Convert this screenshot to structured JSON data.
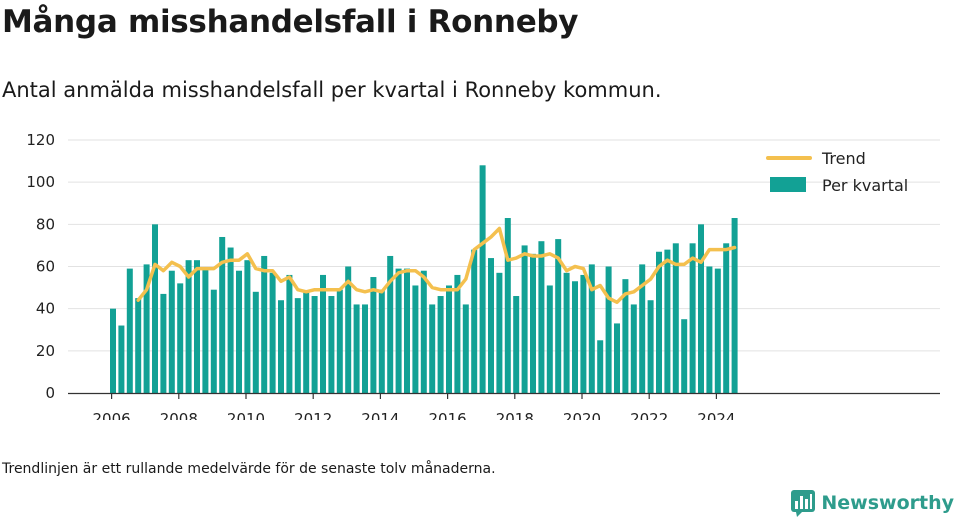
{
  "header": {
    "title": "Många misshandelsfall i Ronneby",
    "subtitle": "Antal anmälda misshandelsfall per kvartal i Ronneby kommun."
  },
  "footnote": "Trendlinjen är ett rullande medelvärde för de senaste tolv månaderna.",
  "brand": {
    "name": "Newsworthy",
    "icon": "bar-chart-logo-icon",
    "color": "#2e9c8c"
  },
  "chart_data": {
    "type": "bar",
    "title": "",
    "xlabel": "",
    "ylabel": "",
    "colors": {
      "bars": "#12a195",
      "trend": "#f4c04e",
      "grid": "#e2e2e2"
    },
    "ylim": [
      0,
      120
    ],
    "y_ticks": [
      "0",
      "20",
      "40",
      "60",
      "80",
      "100",
      "120"
    ],
    "x_ticks": [
      "2006",
      "2008",
      "2010",
      "2012",
      "2014",
      "2016",
      "2018",
      "2020",
      "2022",
      "2024"
    ],
    "legend": {
      "placement": "top-right",
      "entries": [
        "Trend",
        "Per kvartal"
      ]
    },
    "grid": true,
    "categories": [
      "2006 Q1",
      "2006 Q2",
      "2006 Q3",
      "2006 Q4",
      "2007 Q1",
      "2007 Q2",
      "2007 Q3",
      "2007 Q4",
      "2008 Q1",
      "2008 Q2",
      "2008 Q3",
      "2008 Q4",
      "2009 Q1",
      "2009 Q2",
      "2009 Q3",
      "2009 Q4",
      "2010 Q1",
      "2010 Q2",
      "2010 Q3",
      "2010 Q4",
      "2011 Q1",
      "2011 Q2",
      "2011 Q3",
      "2011 Q4",
      "2012 Q1",
      "2012 Q2",
      "2012 Q3",
      "2012 Q4",
      "2013 Q1",
      "2013 Q2",
      "2013 Q3",
      "2013 Q4",
      "2014 Q1",
      "2014 Q2",
      "2014 Q3",
      "2014 Q4",
      "2015 Q1",
      "2015 Q2",
      "2015 Q3",
      "2015 Q4",
      "2016 Q1",
      "2016 Q2",
      "2016 Q3",
      "2016 Q4",
      "2017 Q1",
      "2017 Q2",
      "2017 Q3",
      "2017 Q4",
      "2018 Q1",
      "2018 Q2",
      "2018 Q3",
      "2018 Q4",
      "2019 Q1",
      "2019 Q2",
      "2019 Q3",
      "2019 Q4",
      "2020 Q1",
      "2020 Q2",
      "2020 Q3",
      "2020 Q4",
      "2021 Q1",
      "2021 Q2",
      "2021 Q3",
      "2021 Q4",
      "2022 Q1",
      "2022 Q2",
      "2022 Q3",
      "2022 Q4",
      "2023 Q1",
      "2023 Q2",
      "2023 Q3",
      "2023 Q4",
      "2024 Q1",
      "2024 Q2",
      "2024 Q3"
    ],
    "series": [
      {
        "name": "Per kvartal",
        "type": "bar",
        "values": [
          40,
          32,
          59,
          45,
          61,
          80,
          47,
          58,
          52,
          63,
          63,
          59,
          49,
          74,
          69,
          58,
          63,
          48,
          65,
          57,
          44,
          56,
          45,
          48,
          46,
          56,
          46,
          49,
          60,
          42,
          42,
          55,
          49,
          65,
          59,
          59,
          51,
          58,
          42,
          46,
          51,
          56,
          42,
          68,
          108,
          64,
          57,
          83,
          46,
          70,
          66,
          72,
          51,
          73,
          57,
          53,
          56,
          61,
          25,
          60,
          33,
          54,
          42,
          61,
          44,
          67,
          68,
          71,
          35,
          71,
          80,
          60,
          59,
          71,
          83
        ]
      },
      {
        "name": "Trend",
        "type": "line",
        "values": [
          null,
          null,
          null,
          44,
          49,
          61,
          58,
          62,
          60,
          55,
          59,
          59,
          59,
          62,
          63,
          63,
          66,
          59,
          58,
          58,
          53,
          55,
          49,
          48,
          49,
          49,
          49,
          49,
          53,
          49,
          48,
          49,
          48,
          53,
          57,
          58,
          58,
          55,
          50,
          49,
          49,
          49,
          54,
          68,
          71,
          74,
          78,
          63,
          64,
          66,
          65,
          65,
          66,
          64,
          58,
          60,
          59,
          49,
          51,
          45,
          43,
          47,
          48,
          51,
          54,
          60,
          63,
          61,
          61,
          64,
          62,
          68,
          68,
          68,
          69
        ]
      }
    ]
  }
}
